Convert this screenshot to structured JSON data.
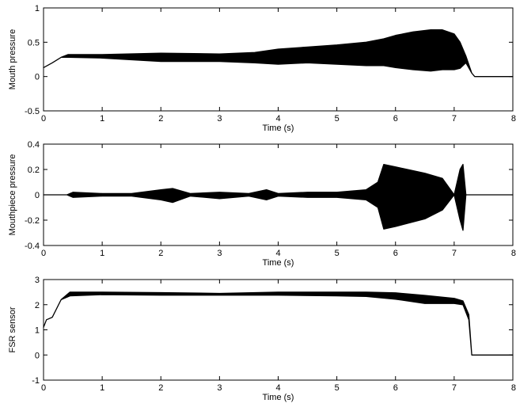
{
  "chart_data": [
    {
      "type": "line",
      "title": "",
      "xlabel": "Time (s)",
      "ylabel": "Mouth pressure",
      "xlim": [
        0,
        8
      ],
      "ylim": [
        -0.5,
        1
      ],
      "xticks": [
        "0",
        "1",
        "2",
        "3",
        "4",
        "5",
        "6",
        "7",
        "8"
      ],
      "yticks": [
        "-0.5",
        "0",
        "0.5",
        "1"
      ],
      "grid": false,
      "series": [
        {
          "upper": [
            [
              0,
              0.13
            ],
            [
              0.15,
              0.2
            ],
            [
              0.3,
              0.28
            ],
            [
              0.42,
              0.32
            ],
            [
              1.0,
              0.32
            ],
            [
              2.0,
              0.34
            ],
            [
              3.0,
              0.33
            ],
            [
              3.6,
              0.35
            ],
            [
              4.0,
              0.4
            ],
            [
              4.5,
              0.43
            ],
            [
              5.0,
              0.46
            ],
            [
              5.5,
              0.5
            ],
            [
              5.8,
              0.55
            ],
            [
              6.0,
              0.6
            ],
            [
              6.3,
              0.65
            ],
            [
              6.6,
              0.68
            ],
            [
              6.8,
              0.68
            ],
            [
              7.0,
              0.62
            ],
            [
              7.1,
              0.5
            ],
            [
              7.2,
              0.3
            ],
            [
              7.3,
              0.05
            ],
            [
              7.35,
              0.0
            ],
            [
              8.0,
              0.0
            ]
          ],
          "lower": [
            [
              0,
              0.13
            ],
            [
              0.15,
              0.2
            ],
            [
              0.3,
              0.28
            ],
            [
              0.42,
              0.28
            ],
            [
              1.0,
              0.27
            ],
            [
              2.0,
              0.22
            ],
            [
              3.0,
              0.22
            ],
            [
              3.6,
              0.2
            ],
            [
              4.0,
              0.18
            ],
            [
              4.5,
              0.2
            ],
            [
              5.0,
              0.18
            ],
            [
              5.5,
              0.16
            ],
            [
              5.8,
              0.16
            ],
            [
              6.0,
              0.13
            ],
            [
              6.3,
              0.1
            ],
            [
              6.6,
              0.08
            ],
            [
              6.8,
              0.1
            ],
            [
              7.0,
              0.1
            ],
            [
              7.1,
              0.12
            ],
            [
              7.2,
              0.2
            ],
            [
              7.3,
              0.05
            ],
            [
              7.35,
              0.0
            ],
            [
              8.0,
              0.0
            ]
          ]
        }
      ]
    },
    {
      "type": "line",
      "title": "",
      "xlabel": "Time (s)",
      "ylabel": "Mouthpiece pressure",
      "xlim": [
        0,
        8
      ],
      "ylim": [
        -0.4,
        0.4
      ],
      "xticks": [
        "0",
        "1",
        "2",
        "3",
        "4",
        "5",
        "6",
        "7",
        "8"
      ],
      "yticks": [
        "-0.4",
        "-0.2",
        "0",
        "0.2",
        "0.4"
      ],
      "grid": false,
      "series": [
        {
          "upper": [
            [
              0,
              0.0
            ],
            [
              0.4,
              0.0
            ],
            [
              0.5,
              0.02
            ],
            [
              1.0,
              0.01
            ],
            [
              1.5,
              0.01
            ],
            [
              2.0,
              0.04
            ],
            [
              2.2,
              0.05
            ],
            [
              2.5,
              0.01
            ],
            [
              3.0,
              0.02
            ],
            [
              3.5,
              0.01
            ],
            [
              3.8,
              0.04
            ],
            [
              4.0,
              0.01
            ],
            [
              4.5,
              0.02
            ],
            [
              5.0,
              0.02
            ],
            [
              5.5,
              0.04
            ],
            [
              5.7,
              0.1
            ],
            [
              5.8,
              0.24
            ],
            [
              6.0,
              0.22
            ],
            [
              6.5,
              0.17
            ],
            [
              6.8,
              0.13
            ],
            [
              7.0,
              0.0
            ],
            [
              7.1,
              0.2
            ],
            [
              7.15,
              0.24
            ],
            [
              7.2,
              0.0
            ],
            [
              8.0,
              0.0
            ]
          ],
          "lower": [
            [
              0,
              0.0
            ],
            [
              0.4,
              0.0
            ],
            [
              0.5,
              -0.02
            ],
            [
              1.0,
              -0.01
            ],
            [
              1.5,
              -0.01
            ],
            [
              2.0,
              -0.04
            ],
            [
              2.2,
              -0.06
            ],
            [
              2.5,
              -0.01
            ],
            [
              3.0,
              -0.03
            ],
            [
              3.5,
              -0.01
            ],
            [
              3.8,
              -0.04
            ],
            [
              4.0,
              -0.01
            ],
            [
              4.5,
              -0.02
            ],
            [
              5.0,
              -0.02
            ],
            [
              5.5,
              -0.04
            ],
            [
              5.7,
              -0.1
            ],
            [
              5.8,
              -0.27
            ],
            [
              6.0,
              -0.25
            ],
            [
              6.5,
              -0.19
            ],
            [
              6.8,
              -0.12
            ],
            [
              7.0,
              0.0
            ],
            [
              7.1,
              -0.2
            ],
            [
              7.15,
              -0.28
            ],
            [
              7.2,
              0.0
            ],
            [
              8.0,
              0.0
            ]
          ]
        }
      ]
    },
    {
      "type": "line",
      "title": "",
      "xlabel": "Time (s)",
      "ylabel": "FSR sensor",
      "xlim": [
        0,
        8
      ],
      "ylim": [
        -1,
        3
      ],
      "xticks": [
        "0",
        "1",
        "2",
        "3",
        "4",
        "5",
        "6",
        "7",
        "8"
      ],
      "yticks": [
        "-1",
        "0",
        "1",
        "2",
        "3"
      ],
      "grid": false,
      "series": [
        {
          "upper": [
            [
              0,
              1.1
            ],
            [
              0.05,
              1.4
            ],
            [
              0.15,
              1.5
            ],
            [
              0.3,
              2.2
            ],
            [
              0.45,
              2.5
            ],
            [
              1.0,
              2.5
            ],
            [
              2.0,
              2.48
            ],
            [
              3.0,
              2.45
            ],
            [
              4.0,
              2.5
            ],
            [
              5.0,
              2.5
            ],
            [
              5.5,
              2.5
            ],
            [
              6.0,
              2.47
            ],
            [
              6.5,
              2.37
            ],
            [
              7.0,
              2.25
            ],
            [
              7.15,
              2.15
            ],
            [
              7.25,
              1.6
            ],
            [
              7.3,
              0.0
            ],
            [
              8.0,
              0.0
            ]
          ],
          "lower": [
            [
              0,
              1.1
            ],
            [
              0.05,
              1.4
            ],
            [
              0.15,
              1.5
            ],
            [
              0.3,
              2.2
            ],
            [
              0.45,
              2.35
            ],
            [
              1.0,
              2.4
            ],
            [
              2.0,
              2.38
            ],
            [
              3.0,
              2.38
            ],
            [
              4.0,
              2.38
            ],
            [
              5.0,
              2.35
            ],
            [
              5.5,
              2.33
            ],
            [
              6.0,
              2.22
            ],
            [
              6.5,
              2.05
            ],
            [
              7.0,
              2.05
            ],
            [
              7.15,
              2.0
            ],
            [
              7.25,
              1.4
            ],
            [
              7.3,
              0.0
            ],
            [
              8.0,
              0.0
            ]
          ]
        }
      ]
    }
  ]
}
